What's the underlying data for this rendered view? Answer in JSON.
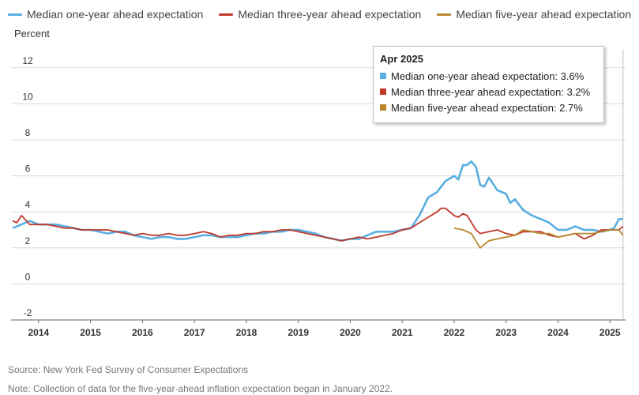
{
  "chart_data": {
    "type": "line",
    "ylabel": "Percent",
    "ylim": [
      -2,
      13
    ],
    "yticks": [
      "12",
      "10",
      "8",
      "6",
      "4",
      "2",
      "0",
      "-2"
    ],
    "ytick_values": [
      12,
      10,
      8,
      6,
      4,
      2,
      0,
      -2
    ],
    "xlim": [
      2013.47,
      2025.3
    ],
    "xticks": [
      "2014",
      "2015",
      "2016",
      "2017",
      "2018",
      "2019",
      "2020",
      "2021",
      "2022",
      "2023",
      "2024",
      "2025"
    ],
    "xtick_values": [
      2014,
      2015,
      2016,
      2017,
      2018,
      2019,
      2020,
      2021,
      2022,
      2023,
      2024,
      2025
    ],
    "grid": true,
    "legend_position": "top",
    "series": [
      {
        "name": "Median one-year ahead expectation",
        "color": "#5aaee0",
        "points": [
          [
            2013.5,
            3.1
          ],
          [
            2013.67,
            3.3
          ],
          [
            2013.83,
            3.5
          ],
          [
            2014.0,
            3.3
          ],
          [
            2014.17,
            3.3
          ],
          [
            2014.33,
            3.3
          ],
          [
            2014.5,
            3.2
          ],
          [
            2014.67,
            3.1
          ],
          [
            2014.83,
            3.0
          ],
          [
            2015.0,
            3.0
          ],
          [
            2015.17,
            2.9
          ],
          [
            2015.33,
            2.8
          ],
          [
            2015.5,
            2.9
          ],
          [
            2015.67,
            2.9
          ],
          [
            2015.83,
            2.7
          ],
          [
            2016.0,
            2.6
          ],
          [
            2016.17,
            2.5
          ],
          [
            2016.33,
            2.6
          ],
          [
            2016.5,
            2.6
          ],
          [
            2016.67,
            2.5
          ],
          [
            2016.83,
            2.5
          ],
          [
            2017.0,
            2.6
          ],
          [
            2017.17,
            2.7
          ],
          [
            2017.33,
            2.7
          ],
          [
            2017.5,
            2.6
          ],
          [
            2017.67,
            2.6
          ],
          [
            2017.83,
            2.6
          ],
          [
            2018.0,
            2.7
          ],
          [
            2018.17,
            2.8
          ],
          [
            2018.33,
            2.8
          ],
          [
            2018.5,
            2.9
          ],
          [
            2018.67,
            2.9
          ],
          [
            2018.83,
            3.0
          ],
          [
            2019.0,
            3.0
          ],
          [
            2019.17,
            2.9
          ],
          [
            2019.33,
            2.8
          ],
          [
            2019.5,
            2.6
          ],
          [
            2019.67,
            2.5
          ],
          [
            2019.83,
            2.4
          ],
          [
            2020.0,
            2.5
          ],
          [
            2020.17,
            2.5
          ],
          [
            2020.33,
            2.7
          ],
          [
            2020.5,
            2.9
          ],
          [
            2020.67,
            2.9
          ],
          [
            2020.83,
            2.9
          ],
          [
            2021.0,
            3.0
          ],
          [
            2021.17,
            3.1
          ],
          [
            2021.33,
            3.8
          ],
          [
            2021.5,
            4.8
          ],
          [
            2021.67,
            5.1
          ],
          [
            2021.83,
            5.7
          ],
          [
            2022.0,
            6.0
          ],
          [
            2022.08,
            5.8
          ],
          [
            2022.17,
            6.6
          ],
          [
            2022.25,
            6.6
          ],
          [
            2022.33,
            6.8
          ],
          [
            2022.42,
            6.5
          ],
          [
            2022.5,
            5.5
          ],
          [
            2022.58,
            5.4
          ],
          [
            2022.67,
            5.9
          ],
          [
            2022.83,
            5.2
          ],
          [
            2023.0,
            5.0
          ],
          [
            2023.08,
            4.5
          ],
          [
            2023.17,
            4.7
          ],
          [
            2023.33,
            4.1
          ],
          [
            2023.5,
            3.8
          ],
          [
            2023.67,
            3.6
          ],
          [
            2023.83,
            3.4
          ],
          [
            2024.0,
            3.0
          ],
          [
            2024.17,
            3.0
          ],
          [
            2024.33,
            3.2
          ],
          [
            2024.5,
            3.0
          ],
          [
            2024.67,
            3.0
          ],
          [
            2024.83,
            2.9
          ],
          [
            2025.0,
            3.0
          ],
          [
            2025.08,
            3.1
          ],
          [
            2025.17,
            3.6
          ],
          [
            2025.25,
            3.6
          ]
        ]
      },
      {
        "name": "Median three-year ahead expectation",
        "color": "#c0392b",
        "points": [
          [
            2013.5,
            3.5
          ],
          [
            2013.58,
            3.4
          ],
          [
            2013.67,
            3.8
          ],
          [
            2013.83,
            3.3
          ],
          [
            2014.0,
            3.3
          ],
          [
            2014.17,
            3.3
          ],
          [
            2014.33,
            3.2
          ],
          [
            2014.5,
            3.1
          ],
          [
            2014.67,
            3.1
          ],
          [
            2014.83,
            3.0
          ],
          [
            2015.0,
            3.0
          ],
          [
            2015.17,
            3.0
          ],
          [
            2015.33,
            3.0
          ],
          [
            2015.5,
            2.9
          ],
          [
            2015.67,
            2.8
          ],
          [
            2015.83,
            2.7
          ],
          [
            2016.0,
            2.8
          ],
          [
            2016.17,
            2.7
          ],
          [
            2016.33,
            2.7
          ],
          [
            2016.5,
            2.8
          ],
          [
            2016.67,
            2.7
          ],
          [
            2016.83,
            2.7
          ],
          [
            2017.0,
            2.8
          ],
          [
            2017.17,
            2.9
          ],
          [
            2017.33,
            2.8
          ],
          [
            2017.5,
            2.6
          ],
          [
            2017.67,
            2.7
          ],
          [
            2017.83,
            2.7
          ],
          [
            2018.0,
            2.8
          ],
          [
            2018.17,
            2.8
          ],
          [
            2018.33,
            2.9
          ],
          [
            2018.5,
            2.9
          ],
          [
            2018.67,
            3.0
          ],
          [
            2018.83,
            3.0
          ],
          [
            2019.0,
            2.9
          ],
          [
            2019.17,
            2.8
          ],
          [
            2019.33,
            2.7
          ],
          [
            2019.5,
            2.6
          ],
          [
            2019.67,
            2.5
          ],
          [
            2019.83,
            2.4
          ],
          [
            2020.0,
            2.5
          ],
          [
            2020.17,
            2.6
          ],
          [
            2020.33,
            2.5
          ],
          [
            2020.5,
            2.6
          ],
          [
            2020.67,
            2.7
          ],
          [
            2020.83,
            2.8
          ],
          [
            2021.0,
            3.0
          ],
          [
            2021.17,
            3.1
          ],
          [
            2021.33,
            3.4
          ],
          [
            2021.5,
            3.7
          ],
          [
            2021.67,
            4.0
          ],
          [
            2021.75,
            4.2
          ],
          [
            2021.83,
            4.2
          ],
          [
            2022.0,
            3.8
          ],
          [
            2022.08,
            3.7
          ],
          [
            2022.17,
            3.9
          ],
          [
            2022.25,
            3.8
          ],
          [
            2022.42,
            3.0
          ],
          [
            2022.5,
            2.8
          ],
          [
            2022.67,
            2.9
          ],
          [
            2022.83,
            3.0
          ],
          [
            2023.0,
            2.8
          ],
          [
            2023.17,
            2.7
          ],
          [
            2023.33,
            2.9
          ],
          [
            2023.5,
            2.9
          ],
          [
            2023.67,
            2.9
          ],
          [
            2023.83,
            2.7
          ],
          [
            2024.0,
            2.6
          ],
          [
            2024.17,
            2.7
          ],
          [
            2024.33,
            2.8
          ],
          [
            2024.5,
            2.5
          ],
          [
            2024.67,
            2.7
          ],
          [
            2024.83,
            3.0
          ],
          [
            2025.0,
            3.0
          ],
          [
            2025.17,
            3.0
          ],
          [
            2025.25,
            3.2
          ]
        ]
      },
      {
        "name": "Median five-year ahead expectation",
        "color": "#b8862b",
        "points": [
          [
            2022.0,
            3.1
          ],
          [
            2022.17,
            3.0
          ],
          [
            2022.33,
            2.8
          ],
          [
            2022.5,
            2.0
          ],
          [
            2022.67,
            2.4
          ],
          [
            2022.83,
            2.5
          ],
          [
            2023.0,
            2.6
          ],
          [
            2023.17,
            2.7
          ],
          [
            2023.33,
            3.0
          ],
          [
            2023.5,
            2.9
          ],
          [
            2023.67,
            2.8
          ],
          [
            2023.83,
            2.8
          ],
          [
            2024.0,
            2.6
          ],
          [
            2024.17,
            2.7
          ],
          [
            2024.33,
            2.8
          ],
          [
            2024.5,
            2.8
          ],
          [
            2024.67,
            2.8
          ],
          [
            2024.83,
            2.9
          ],
          [
            2025.0,
            3.0
          ],
          [
            2025.17,
            3.0
          ],
          [
            2025.25,
            2.7
          ]
        ]
      }
    ]
  },
  "tooltip": {
    "title": "Apr 2025",
    "rows": [
      {
        "text": "Median one-year ahead expectation: 3.6%",
        "color": "#5aaee0"
      },
      {
        "text": "Median three-year ahead expectation: 3.2%",
        "color": "#c0392b"
      },
      {
        "text": "Median five-year ahead expectation: 2.7%",
        "color": "#b8862b"
      }
    ]
  },
  "source": "Source: New York Fed Survey of Consumer Expectations",
  "note": "Note: Collection of data for the five-year-ahead inflation expectation began in January 2022."
}
